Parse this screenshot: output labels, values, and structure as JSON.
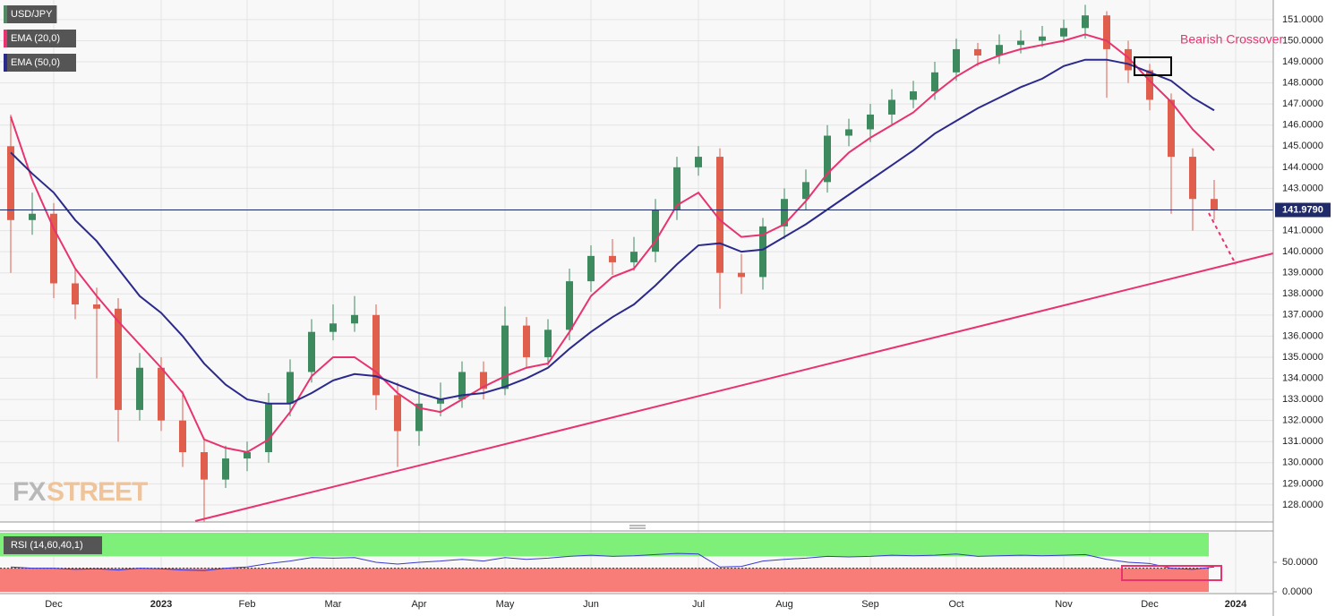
{
  "chart_data": [
    {
      "type": "candlestick",
      "categories": [
        null,
        null,
        "Dec",
        null,
        null,
        null,
        null,
        "2023",
        null,
        null,
        null,
        "Feb",
        null,
        null,
        null,
        "Mar",
        null,
        null,
        null,
        "Apr",
        null,
        null,
        null,
        "May",
        null,
        null,
        null,
        "Jun",
        null,
        null,
        null,
        null,
        "Jul",
        null,
        null,
        null,
        "Aug",
        null,
        null,
        null,
        "Sep",
        null,
        null,
        null,
        "Oct",
        null,
        null,
        null,
        null,
        "Nov",
        null,
        null,
        null,
        "Dec",
        null,
        null,
        null,
        "2024"
      ],
      "series": [
        {
          "name": "USD/JPY",
          "type": "candlestick",
          "color": "#4f8a64",
          "up_color": "#3d8a5e",
          "down_color": "#df5e4c",
          "open": [
            145.0,
            141.5,
            141.8,
            138.5,
            137.5,
            137.3,
            132.5,
            134.5,
            132.0,
            130.5,
            129.2,
            130.2,
            130.5,
            132.8,
            134.3,
            136.2,
            136.6,
            137.0,
            133.2,
            131.5,
            132.8,
            133.0,
            134.3,
            133.5,
            136.5,
            135.0,
            136.3,
            138.6,
            139.8,
            139.5,
            140.0,
            142.0,
            144.0,
            144.5,
            139.0,
            138.8,
            141.2,
            142.5,
            143.3,
            145.5,
            145.8,
            146.5,
            147.2,
            147.6,
            148.5,
            149.6,
            149.3,
            149.8,
            150.0,
            150.2,
            150.6,
            151.2,
            149.6,
            148.6,
            147.2,
            144.5,
            142.5,
            null
          ],
          "high": [
            146.5,
            142.8,
            142.3,
            139.2,
            138.3,
            137.8,
            135.2,
            135.0,
            133.4,
            131.2,
            130.8,
            131.0,
            133.3,
            134.9,
            136.8,
            137.5,
            137.9,
            137.5,
            133.8,
            133.3,
            133.8,
            134.8,
            134.8,
            137.4,
            136.9,
            136.8,
            139.2,
            140.3,
            140.6,
            140.7,
            142.5,
            144.5,
            145.0,
            144.9,
            139.9,
            141.6,
            143.0,
            143.9,
            146.0,
            146.3,
            147.0,
            147.7,
            148.1,
            149.0,
            150.1,
            149.9,
            150.3,
            150.5,
            150.7,
            151.0,
            151.7,
            151.4,
            150.0,
            148.9,
            147.5,
            144.9,
            143.4,
            null
          ],
          "low": [
            139.0,
            140.8,
            137.8,
            136.8,
            134.0,
            131.0,
            132.0,
            131.5,
            129.8,
            127.2,
            128.8,
            129.6,
            130.0,
            132.2,
            133.8,
            135.8,
            136.2,
            132.5,
            129.8,
            130.8,
            132.2,
            132.6,
            133.0,
            133.2,
            134.5,
            134.6,
            135.8,
            138.1,
            138.9,
            139.1,
            139.5,
            141.5,
            143.6,
            137.3,
            138.0,
            138.2,
            140.6,
            142.0,
            142.8,
            145.0,
            145.2,
            146.0,
            146.8,
            147.2,
            148.1,
            148.8,
            148.9,
            149.4,
            149.7,
            149.9,
            150.1,
            147.3,
            148.0,
            146.7,
            141.8,
            141.0,
            141.5,
            null
          ],
          "close": [
            141.5,
            141.8,
            138.5,
            137.5,
            137.3,
            132.5,
            134.5,
            132.0,
            130.5,
            129.2,
            130.2,
            130.5,
            132.8,
            134.3,
            136.2,
            136.6,
            137.0,
            133.2,
            131.5,
            132.8,
            133.0,
            134.3,
            133.5,
            136.5,
            135.0,
            136.3,
            138.6,
            139.8,
            139.5,
            140.0,
            142.0,
            144.0,
            144.5,
            139.0,
            138.8,
            141.2,
            142.5,
            143.3,
            145.5,
            145.8,
            146.5,
            147.2,
            147.6,
            148.5,
            149.6,
            149.3,
            149.8,
            150.0,
            150.2,
            150.6,
            151.2,
            149.6,
            148.6,
            147.2,
            144.5,
            142.5,
            141.979,
            null
          ]
        },
        {
          "name": "EMA (20,0)",
          "type": "line",
          "color": "#e8336e",
          "values": [
            146.4,
            143.4,
            141.1,
            139.2,
            137.9,
            136.7,
            135.6,
            134.5,
            133.3,
            131.1,
            130.7,
            130.5,
            131.1,
            132.4,
            134.1,
            135.0,
            135.0,
            134.3,
            133.3,
            132.6,
            132.4,
            133.0,
            133.6,
            134.1,
            134.5,
            134.7,
            136.2,
            137.9,
            138.8,
            139.2,
            140.5,
            142.2,
            142.8,
            141.5,
            140.7,
            140.8,
            141.3,
            142.4,
            143.7,
            144.7,
            145.4,
            146.0,
            146.6,
            147.5,
            148.3,
            148.9,
            149.3,
            149.6,
            149.8,
            150.0,
            150.3,
            150.0,
            149.2,
            148.1,
            147.1,
            145.8,
            144.8,
            null
          ]
        },
        {
          "name": "EMA (50,0)",
          "type": "line",
          "color": "#2b2a8c",
          "values": [
            144.7,
            143.7,
            142.8,
            141.5,
            140.5,
            139.2,
            137.9,
            137.1,
            136.0,
            134.7,
            133.7,
            133.0,
            132.8,
            132.8,
            133.3,
            133.9,
            134.2,
            134.1,
            133.7,
            133.3,
            133.0,
            133.2,
            133.3,
            133.6,
            134.0,
            134.5,
            135.4,
            136.2,
            136.9,
            137.5,
            138.4,
            139.4,
            140.3,
            140.4,
            140.0,
            140.1,
            140.7,
            141.3,
            142.0,
            142.7,
            143.4,
            144.1,
            144.8,
            145.6,
            146.2,
            146.8,
            147.3,
            147.8,
            148.2,
            148.8,
            149.1,
            149.1,
            148.9,
            148.5,
            148.1,
            147.3,
            146.7,
            null
          ]
        }
      ],
      "ylim": [
        127.19,
        151.93
      ],
      "yticks": [
        {
          "value": 128,
          "label": "128.0000"
        },
        {
          "value": 129,
          "label": "129.0000"
        },
        {
          "value": 130,
          "label": "130.0000"
        },
        {
          "value": 131,
          "label": "131.0000"
        },
        {
          "value": 132,
          "label": "132.0000"
        },
        {
          "value": 133,
          "label": "133.0000"
        },
        {
          "value": 134,
          "label": "134.0000"
        },
        {
          "value": 135,
          "label": "135.0000"
        },
        {
          "value": 136,
          "label": "136.0000"
        },
        {
          "value": 137,
          "label": "137.0000"
        },
        {
          "value": 138,
          "label": "138.0000"
        },
        {
          "value": 139,
          "label": "139.0000"
        },
        {
          "value": 140,
          "label": "140.0000"
        },
        {
          "value": 141,
          "label": "141.0000"
        },
        {
          "value": 142,
          "label": "142.0000"
        },
        {
          "value": 143,
          "label": "143.0000"
        },
        {
          "value": 144,
          "label": "144.0000"
        },
        {
          "value": 145,
          "label": "145.0000"
        },
        {
          "value": 146,
          "label": "146.0000"
        },
        {
          "value": 147,
          "label": "147.0000"
        },
        {
          "value": 148,
          "label": "148.0000"
        },
        {
          "value": 149,
          "label": "149.0000"
        },
        {
          "value": 150,
          "label": "150.0000"
        },
        {
          "value": 151,
          "label": "151.0000"
        }
      ],
      "last_price": {
        "value": 141.979,
        "label": "141.9790",
        "color": "#1f2a6b"
      },
      "annotation": {
        "text": "Bearish Crossover",
        "color": "#e8336e"
      },
      "grid": true,
      "watermark": [
        "FX",
        "STREET"
      ]
    },
    {
      "type": "rsi",
      "name": "RSI (14,60,40,1)",
      "color": "#3a3ad0",
      "values": [
        42,
        40,
        40,
        38,
        39,
        37,
        40,
        39,
        37,
        36,
        40,
        42,
        48,
        52,
        58,
        57,
        58,
        50,
        47,
        50,
        52,
        55,
        52,
        58,
        55,
        57,
        60,
        62,
        60,
        61,
        63,
        65,
        64,
        42,
        43,
        52,
        55,
        57,
        60,
        59,
        60,
        62,
        61,
        62,
        64,
        60,
        61,
        62,
        61,
        62,
        63,
        55,
        50,
        48,
        40,
        38,
        42,
        null
      ],
      "upper": 60,
      "lower": 40,
      "upper_color": "#7ef07a",
      "lower_color": "#f87c78",
      "ylim": [
        0,
        100
      ],
      "yticks": [
        {
          "value": 0,
          "label": "0.0000"
        },
        {
          "value": 50,
          "label": "50.0000"
        }
      ]
    }
  ]
}
